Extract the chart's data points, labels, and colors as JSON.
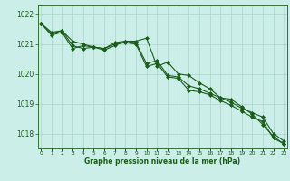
{
  "hours": [
    0,
    1,
    2,
    3,
    4,
    5,
    6,
    7,
    8,
    9,
    10,
    11,
    12,
    13,
    14,
    15,
    16,
    17,
    18,
    19,
    20,
    21,
    22,
    23
  ],
  "line1": [
    1021.7,
    1021.4,
    1021.45,
    1021.1,
    1021.0,
    1020.9,
    1020.85,
    1021.05,
    1021.1,
    1021.05,
    1020.35,
    1020.45,
    1019.95,
    1019.9,
    1019.6,
    1019.5,
    1019.35,
    1019.2,
    1019.05,
    1018.85,
    1018.7,
    1018.55,
    1018.0,
    1017.75
  ],
  "line2": [
    1021.7,
    1021.35,
    1021.45,
    1020.95,
    1020.85,
    1020.9,
    1020.85,
    1021.0,
    1021.05,
    1021.0,
    1020.25,
    1020.35,
    1019.9,
    1019.85,
    1019.45,
    1019.4,
    1019.3,
    1019.1,
    1018.95,
    1018.75,
    1018.55,
    1018.4,
    1017.85,
    1017.65
  ],
  "line3": [
    1021.7,
    1021.3,
    1021.4,
    1020.85,
    1020.95,
    1020.9,
    1020.8,
    1020.95,
    1021.1,
    1021.1,
    1021.2,
    1020.25,
    1020.4,
    1020.0,
    1019.95,
    1019.7,
    1019.5,
    1019.2,
    1019.15,
    1018.9,
    1018.65,
    1018.3,
    1017.9,
    1017.65
  ],
  "line_color": "#1a5c1a",
  "bg_color": "#cceee8",
  "grid_color": "#aad4cc",
  "xlabel": "Graphe pression niveau de la mer (hPa)",
  "xlabel_color": "#1a5c1a",
  "tick_color": "#1a5c1a",
  "ylim": [
    1017.5,
    1022.3
  ],
  "yticks": [
    1018,
    1019,
    1020,
    1021,
    1022
  ],
  "marker": "D",
  "marker_size": 2.0,
  "linewidth": 0.8
}
